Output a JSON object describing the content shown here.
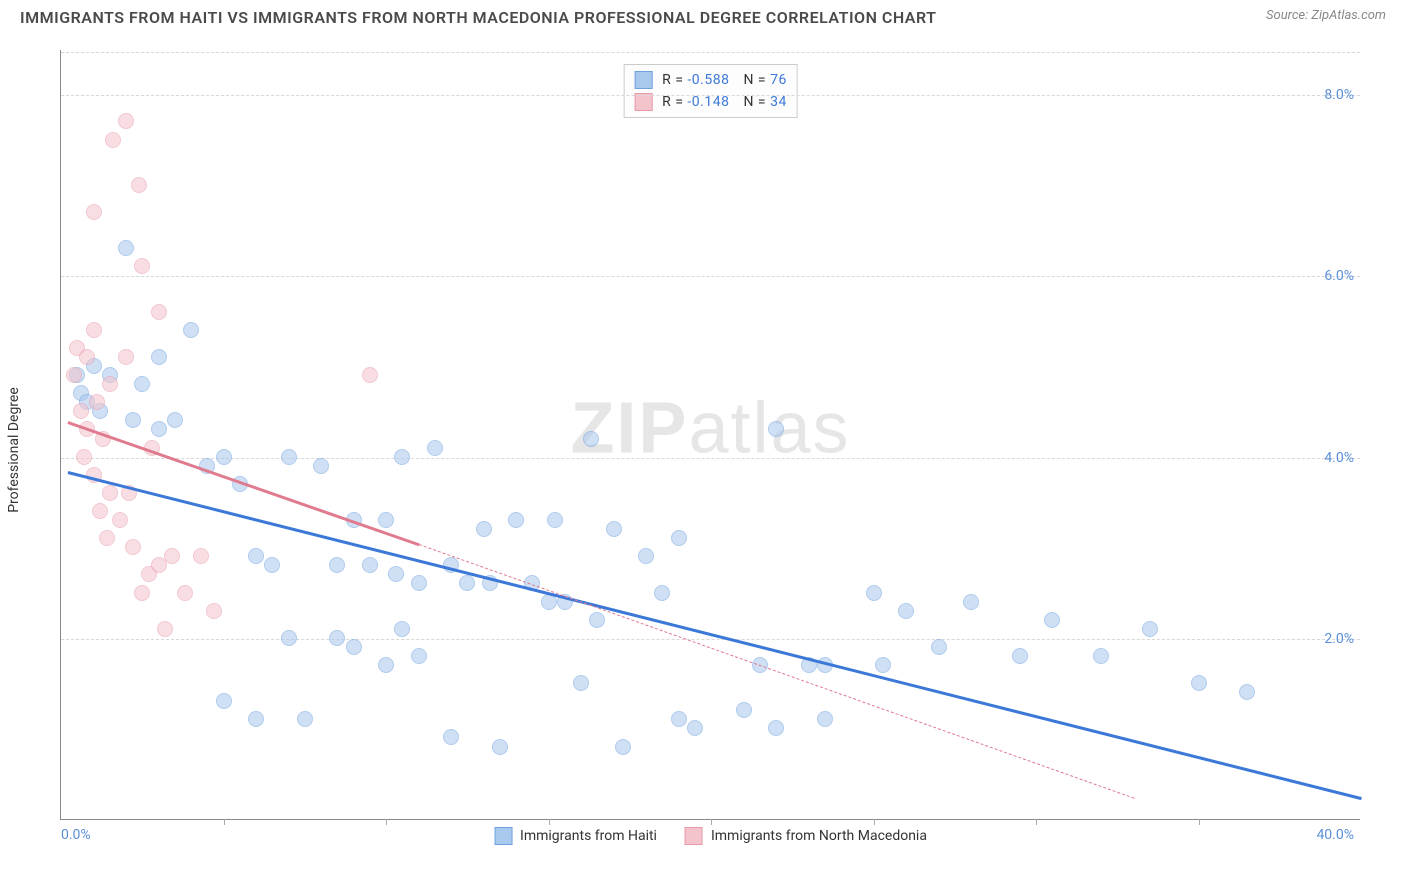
{
  "title": "IMMIGRANTS FROM HAITI VS IMMIGRANTS FROM NORTH MACEDONIA PROFESSIONAL DEGREE CORRELATION CHART",
  "source_label": "Source: ZipAtlas.com",
  "y_axis_label": "Professional Degree",
  "watermark_bold": "ZIP",
  "watermark_rest": "atlas",
  "chart": {
    "type": "scatter",
    "xlim": [
      0,
      40
    ],
    "ylim": [
      0,
      8.5
    ],
    "x_tick_min_label": "0.0%",
    "x_tick_max_label": "40.0%",
    "x_minor_ticks": [
      5,
      10,
      15,
      20,
      25,
      30,
      35
    ],
    "y_ticks": [
      {
        "v": 2.0,
        "label": "2.0%"
      },
      {
        "v": 4.0,
        "label": "4.0%"
      },
      {
        "v": 6.0,
        "label": "6.0%"
      },
      {
        "v": 8.0,
        "label": "8.0%"
      }
    ],
    "background_color": "#ffffff",
    "grid_color": "#d8d8d8",
    "marker_radius": 8,
    "marker_opacity": 0.55,
    "series": [
      {
        "id": "haiti",
        "label": "Immigrants from Haiti",
        "color_fill": "#a9c8ee",
        "color_stroke": "#6fa2df",
        "trend_color": "#3b78d8",
        "trend_width": 2.5,
        "R": "-0.588",
        "N": "76",
        "trend": {
          "x1": 0.2,
          "y1": 3.85,
          "x2": 40,
          "y2": 0.25,
          "dash_from_x": 40
        },
        "points": [
          [
            0.5,
            4.9
          ],
          [
            0.6,
            4.7
          ],
          [
            0.8,
            4.6
          ],
          [
            1.0,
            5.0
          ],
          [
            1.2,
            4.5
          ],
          [
            1.5,
            4.9
          ],
          [
            2.0,
            6.3
          ],
          [
            2.2,
            4.4
          ],
          [
            2.5,
            4.8
          ],
          [
            3.0,
            4.3
          ],
          [
            3.0,
            5.1
          ],
          [
            3.5,
            4.4
          ],
          [
            4.0,
            5.4
          ],
          [
            4.5,
            3.9
          ],
          [
            5.0,
            4.0
          ],
          [
            5.0,
            1.3
          ],
          [
            5.5,
            3.7
          ],
          [
            6.0,
            2.9
          ],
          [
            6.0,
            1.1
          ],
          [
            6.5,
            2.8
          ],
          [
            7.0,
            4.0
          ],
          [
            7.0,
            2.0
          ],
          [
            7.5,
            1.1
          ],
          [
            8.0,
            3.9
          ],
          [
            8.5,
            2.0
          ],
          [
            8.5,
            2.8
          ],
          [
            9.0,
            3.3
          ],
          [
            9.0,
            1.9
          ],
          [
            9.5,
            2.8
          ],
          [
            10.0,
            3.3
          ],
          [
            10.0,
            1.7
          ],
          [
            10.3,
            2.7
          ],
          [
            10.5,
            2.1
          ],
          [
            10.5,
            4.0
          ],
          [
            11.0,
            2.6
          ],
          [
            11.0,
            1.8
          ],
          [
            11.5,
            4.1
          ],
          [
            12.0,
            2.8
          ],
          [
            12.0,
            0.9
          ],
          [
            12.5,
            2.6
          ],
          [
            13.0,
            3.2
          ],
          [
            13.2,
            2.6
          ],
          [
            13.5,
            0.8
          ],
          [
            14.0,
            3.3
          ],
          [
            14.5,
            2.6
          ],
          [
            15.0,
            2.4
          ],
          [
            15.2,
            3.3
          ],
          [
            15.5,
            2.4
          ],
          [
            16.0,
            1.5
          ],
          [
            16.3,
            4.2
          ],
          [
            16.5,
            2.2
          ],
          [
            17.0,
            3.2
          ],
          [
            17.3,
            0.8
          ],
          [
            18.0,
            2.9
          ],
          [
            18.5,
            2.5
          ],
          [
            19.0,
            3.1
          ],
          [
            19.0,
            1.1
          ],
          [
            19.5,
            1.0
          ],
          [
            21.0,
            1.2
          ],
          [
            21.5,
            1.7
          ],
          [
            22.0,
            1.0
          ],
          [
            22.0,
            4.3
          ],
          [
            23.0,
            1.7
          ],
          [
            23.5,
            1.1
          ],
          [
            25.0,
            2.5
          ],
          [
            25.3,
            1.7
          ],
          [
            26.0,
            2.3
          ],
          [
            27.0,
            1.9
          ],
          [
            28.0,
            2.4
          ],
          [
            29.5,
            1.8
          ],
          [
            30.5,
            2.2
          ],
          [
            32.0,
            1.8
          ],
          [
            33.5,
            2.1
          ],
          [
            35.0,
            1.5
          ],
          [
            36.5,
            1.4
          ],
          [
            23.5,
            1.7
          ]
        ]
      },
      {
        "id": "north_macedonia",
        "label": "Immigrants from North Macedonia",
        "color_fill": "#f4c4cc",
        "color_stroke": "#e89aac",
        "trend_color": "#e07a8f",
        "trend_width": 2.5,
        "R": "-0.148",
        "N": "34",
        "trend": {
          "x1": 0.2,
          "y1": 4.4,
          "x2": 11.0,
          "y2": 3.05,
          "dash_from_x": 11.0,
          "dash_to_x": 33,
          "dash_to_y": 0.25
        },
        "points": [
          [
            0.4,
            4.9
          ],
          [
            0.5,
            5.2
          ],
          [
            0.6,
            4.5
          ],
          [
            0.7,
            4.0
          ],
          [
            0.8,
            4.3
          ],
          [
            1.0,
            3.8
          ],
          [
            1.0,
            5.4
          ],
          [
            1.1,
            4.6
          ],
          [
            1.2,
            3.4
          ],
          [
            1.3,
            4.2
          ],
          [
            1.4,
            3.1
          ],
          [
            1.5,
            3.6
          ],
          [
            1.5,
            4.8
          ],
          [
            1.6,
            7.5
          ],
          [
            1.8,
            3.3
          ],
          [
            2.0,
            7.7
          ],
          [
            2.0,
            5.1
          ],
          [
            2.2,
            3.0
          ],
          [
            2.4,
            7.0
          ],
          [
            2.5,
            2.5
          ],
          [
            2.5,
            6.1
          ],
          [
            2.7,
            2.7
          ],
          [
            2.8,
            4.1
          ],
          [
            3.0,
            2.8
          ],
          [
            3.0,
            5.6
          ],
          [
            3.2,
            2.1
          ],
          [
            3.4,
            2.9
          ],
          [
            3.8,
            2.5
          ],
          [
            4.3,
            2.9
          ],
          [
            4.7,
            2.3
          ],
          [
            1.0,
            6.7
          ],
          [
            0.8,
            5.1
          ],
          [
            9.5,
            4.9
          ],
          [
            2.1,
            3.6
          ]
        ]
      }
    ]
  },
  "legend_top": {
    "R_label": "R =",
    "N_label": "N ="
  }
}
